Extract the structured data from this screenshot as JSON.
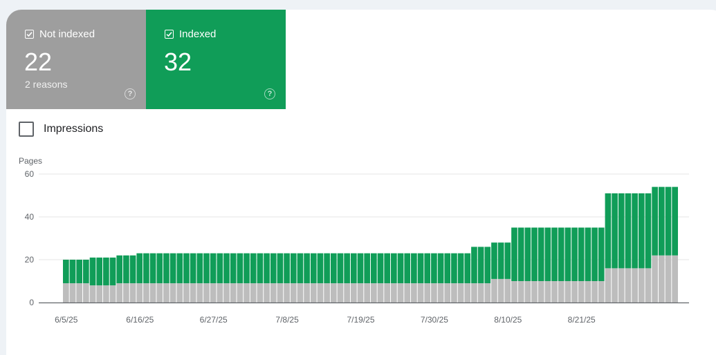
{
  "tiles": {
    "not_indexed": {
      "label": "Not indexed",
      "value": "22",
      "sub": "2 reasons",
      "color": "#9e9e9e"
    },
    "indexed": {
      "label": "Indexed",
      "value": "32",
      "color": "#109d58"
    }
  },
  "impressions": {
    "label": "Impressions",
    "checked": false
  },
  "chart_data": {
    "type": "bar",
    "stacked": true,
    "ylabel": "Pages",
    "ylim": [
      0,
      60
    ],
    "yticks": [
      0,
      20,
      40,
      60
    ],
    "grid": true,
    "xtick_labels": [
      "6/5/25",
      "6/16/25",
      "6/27/25",
      "7/8/25",
      "7/19/25",
      "7/30/25",
      "8/10/25",
      "8/21/25"
    ],
    "x_start": "6/5/25",
    "x_end": "9/1/25",
    "series": [
      {
        "name": "Not indexed",
        "color": "#bdbdbd",
        "values": [
          9,
          9,
          9,
          9,
          8,
          8,
          8,
          8,
          9,
          9,
          9,
          9,
          9,
          9,
          9,
          9,
          9,
          9,
          9,
          9,
          9,
          9,
          9,
          9,
          9,
          9,
          9,
          9,
          9,
          9,
          9,
          9,
          9,
          9,
          9,
          9,
          9,
          9,
          9,
          9,
          9,
          9,
          9,
          9,
          9,
          9,
          9,
          9,
          9,
          9,
          9,
          9,
          9,
          9,
          9,
          9,
          9,
          9,
          9,
          9,
          9,
          9,
          9,
          9,
          11,
          11,
          11,
          10,
          10,
          10,
          10,
          10,
          10,
          10,
          10,
          10,
          10,
          10,
          10,
          10,
          10,
          16,
          16,
          16,
          16,
          16,
          16,
          16,
          22,
          22,
          22,
          22
        ]
      },
      {
        "name": "Indexed",
        "color": "#109d58",
        "values": [
          11,
          11,
          11,
          11,
          13,
          13,
          13,
          13,
          13,
          13,
          13,
          14,
          14,
          14,
          14,
          14,
          14,
          14,
          14,
          14,
          14,
          14,
          14,
          14,
          14,
          14,
          14,
          14,
          14,
          14,
          14,
          14,
          14,
          14,
          14,
          14,
          14,
          14,
          14,
          14,
          14,
          14,
          14,
          14,
          14,
          14,
          14,
          14,
          14,
          14,
          14,
          14,
          14,
          14,
          14,
          14,
          14,
          14,
          14,
          14,
          14,
          17,
          17,
          17,
          17,
          17,
          17,
          25,
          25,
          25,
          25,
          25,
          25,
          25,
          25,
          25,
          25,
          25,
          25,
          25,
          25,
          35,
          35,
          35,
          35,
          35,
          35,
          35,
          32,
          32,
          32,
          32
        ]
      }
    ]
  }
}
